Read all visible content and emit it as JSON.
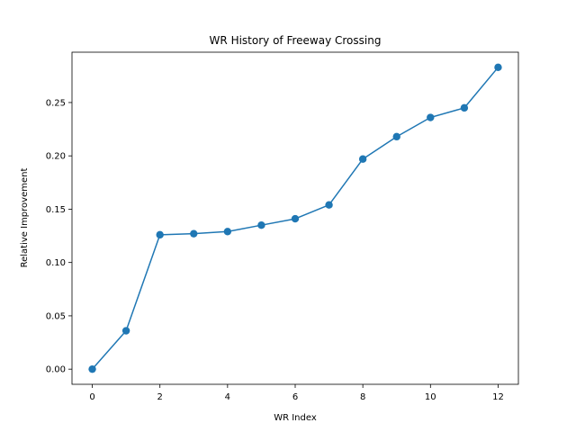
{
  "chart_data": {
    "type": "line",
    "title": "WR History of Freeway Crossing",
    "xlabel": "WR Index",
    "ylabel": "Relative Improvement",
    "xlim": [
      -0.6,
      12.6
    ],
    "ylim": [
      -0.0142,
      0.2972
    ],
    "xticks": [
      0,
      2,
      4,
      6,
      8,
      10,
      12
    ],
    "xtick_labels": [
      "0",
      "2",
      "4",
      "6",
      "8",
      "10",
      "12"
    ],
    "yticks": [
      0.0,
      0.05,
      0.1,
      0.15,
      0.2,
      0.25
    ],
    "ytick_labels": [
      "0.00",
      "0.05",
      "0.10",
      "0.15",
      "0.20",
      "0.25"
    ],
    "grid": false,
    "series": [
      {
        "color": "#1f77b4",
        "marker": "circle",
        "x": [
          0,
          1,
          2,
          3,
          4,
          5,
          6,
          7,
          8,
          9,
          10,
          11,
          12
        ],
        "y": [
          0.0,
          0.036,
          0.126,
          0.127,
          0.129,
          0.135,
          0.141,
          0.154,
          0.197,
          0.218,
          0.236,
          0.245,
          0.283
        ]
      }
    ]
  }
}
